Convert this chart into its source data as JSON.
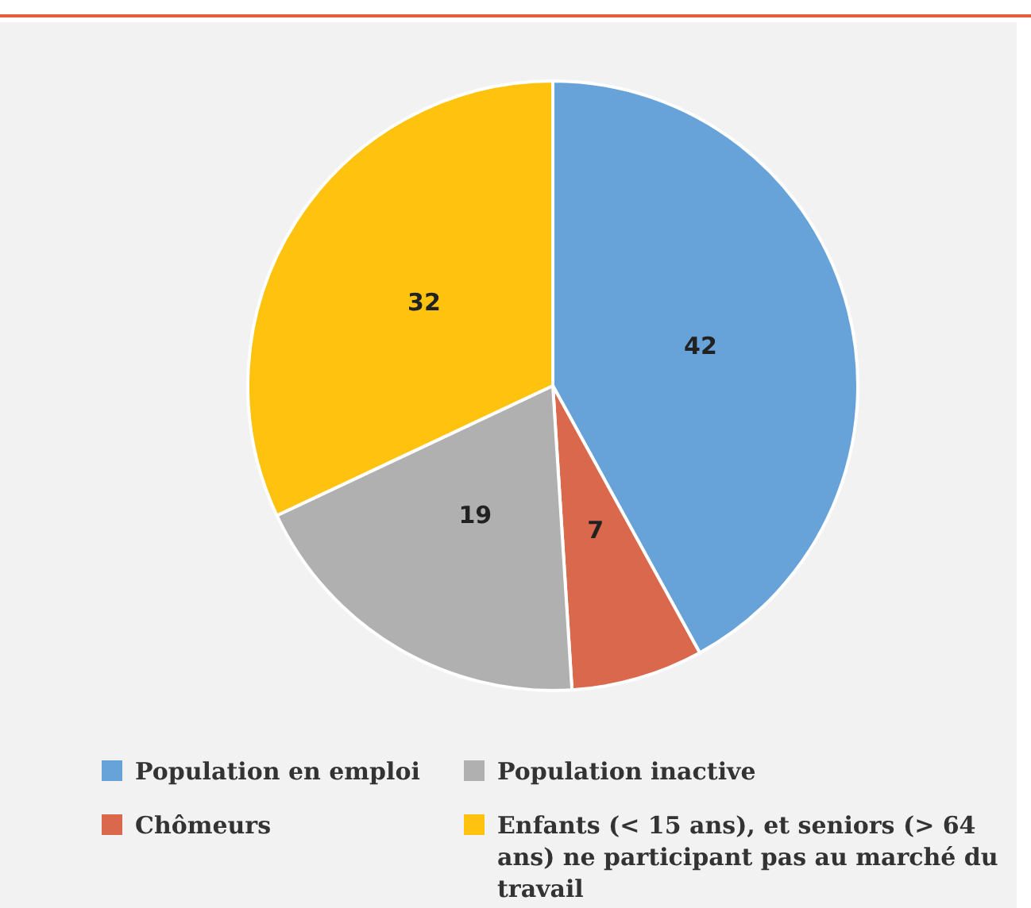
{
  "chart_data": {
    "type": "pie",
    "categories": [
      "Population en emploi",
      "Chômeurs",
      "Population inactive",
      "Enfants (< 15 ans), et seniors (> 64 ans) ne participant pas au marché du travail"
    ],
    "values": [
      42,
      7,
      19,
      32
    ],
    "colors": [
      "#67a3d9",
      "#d9684d",
      "#b0b0b0",
      "#ffc20e"
    ],
    "data_labels": true,
    "legend": "bottom"
  }
}
